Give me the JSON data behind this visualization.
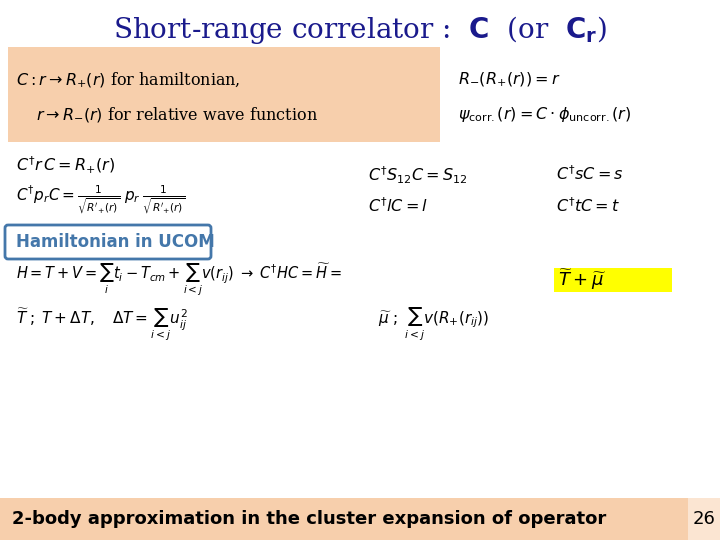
{
  "bg_color": "#ffffff",
  "orange_box_color": "#f5c090",
  "yellow_highlight": "#ffff00",
  "blue_box_color": "#4477aa",
  "footer_color": "#f5c090",
  "title_color": "#1a1a8c",
  "text_color": "#000000",
  "slide_number": "26",
  "figsize": [
    7.2,
    5.4
  ],
  "dpi": 100
}
